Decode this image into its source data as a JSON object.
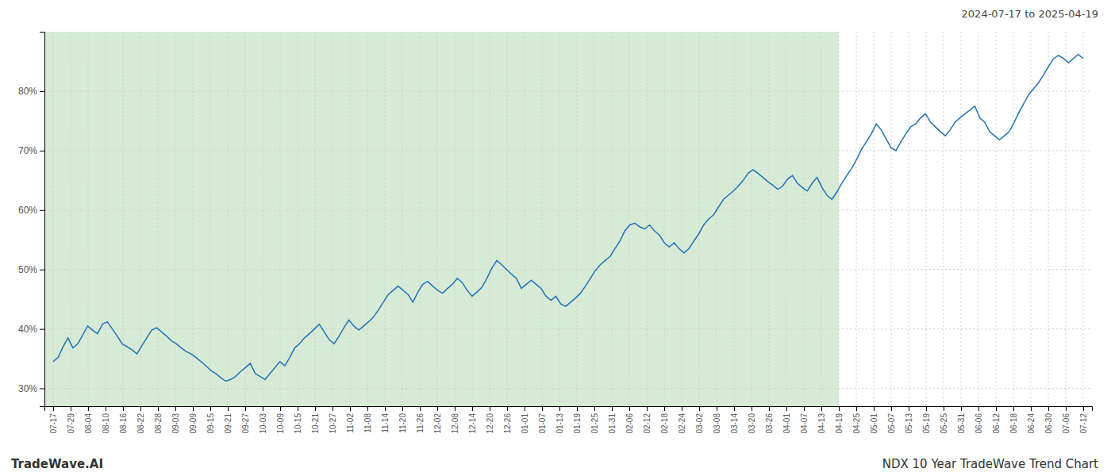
{
  "chart_data": {
    "type": "line",
    "title": "NDX 10 Year TradeWave Trend Chart",
    "subtitle": "2024-07-17 to 2025-04-19",
    "annotations": [
      {
        "text": "TradeWave.AI"
      }
    ],
    "color": "#2272B5",
    "grid": true,
    "shaded_region": {
      "start": -0.5,
      "end": 45,
      "color": "#d6ead6"
    },
    "xlim": [
      -0.5,
      59.5
    ],
    "xticks": [
      {
        "value": 0,
        "label": "07-17"
      },
      {
        "value": 1,
        "label": "07-29"
      },
      {
        "value": 2,
        "label": "08-04"
      },
      {
        "value": 3,
        "label": "08-10"
      },
      {
        "value": 4,
        "label": "08-16"
      },
      {
        "value": 5,
        "label": "08-22"
      },
      {
        "value": 6,
        "label": "08-28"
      },
      {
        "value": 7,
        "label": "09-03"
      },
      {
        "value": 8,
        "label": "09-09"
      },
      {
        "value": 9,
        "label": "09-15"
      },
      {
        "value": 10,
        "label": "09-21"
      },
      {
        "value": 11,
        "label": "09-27"
      },
      {
        "value": 12,
        "label": "10-03"
      },
      {
        "value": 13,
        "label": "10-09"
      },
      {
        "value": 14,
        "label": "10-15"
      },
      {
        "value": 15,
        "label": "10-21"
      },
      {
        "value": 16,
        "label": "10-27"
      },
      {
        "value": 17,
        "label": "11-02"
      },
      {
        "value": 18,
        "label": "11-08"
      },
      {
        "value": 19,
        "label": "11-14"
      },
      {
        "value": 20,
        "label": "11-20"
      },
      {
        "value": 21,
        "label": "11-26"
      },
      {
        "value": 22,
        "label": "12-02"
      },
      {
        "value": 23,
        "label": "12-08"
      },
      {
        "value": 24,
        "label": "12-14"
      },
      {
        "value": 25,
        "label": "12-20"
      },
      {
        "value": 26,
        "label": "12-26"
      },
      {
        "value": 27,
        "label": "01-01"
      },
      {
        "value": 28,
        "label": "01-07"
      },
      {
        "value": 29,
        "label": "01-13"
      },
      {
        "value": 30,
        "label": "01-19"
      },
      {
        "value": 31,
        "label": "01-25"
      },
      {
        "value": 32,
        "label": "01-31"
      },
      {
        "value": 33,
        "label": "02-06"
      },
      {
        "value": 34,
        "label": "02-12"
      },
      {
        "value": 35,
        "label": "02-18"
      },
      {
        "value": 36,
        "label": "02-24"
      },
      {
        "value": 37,
        "label": "03-02"
      },
      {
        "value": 38,
        "label": "03-08"
      },
      {
        "value": 39,
        "label": "03-14"
      },
      {
        "value": 40,
        "label": "03-20"
      },
      {
        "value": 41,
        "label": "03-26"
      },
      {
        "value": 42,
        "label": "04-01"
      },
      {
        "value": 43,
        "label": "04-07"
      },
      {
        "value": 44,
        "label": "04-13"
      },
      {
        "value": 45,
        "label": "04-19"
      },
      {
        "value": 46,
        "label": "04-25"
      },
      {
        "value": 47,
        "label": "05-01"
      },
      {
        "value": 48,
        "label": "05-07"
      },
      {
        "value": 49,
        "label": "05-13"
      },
      {
        "value": 50,
        "label": "05-19"
      },
      {
        "value": 51,
        "label": "05-25"
      },
      {
        "value": 52,
        "label": "05-31"
      },
      {
        "value": 53,
        "label": "06-06"
      },
      {
        "value": 54,
        "label": "06-12"
      },
      {
        "value": 55,
        "label": "06-18"
      },
      {
        "value": 56,
        "label": "06-24"
      },
      {
        "value": 57,
        "label": "06-30"
      },
      {
        "value": 58,
        "label": "07-06"
      },
      {
        "value": 59,
        "label": "07-12"
      }
    ],
    "ylim": [
      27,
      90
    ],
    "yticks": [
      {
        "value": 30,
        "label": "30%"
      },
      {
        "value": 40,
        "label": "40%"
      },
      {
        "value": 50,
        "label": "50%"
      },
      {
        "value": 60,
        "label": "60%"
      },
      {
        "value": 70,
        "label": "70%"
      },
      {
        "value": 80,
        "label": "80%"
      }
    ],
    "x": [
      0,
      0.2823,
      0.5646,
      0.8469,
      1.1292,
      1.4115,
      1.6938,
      1.9761,
      2.2584,
      2.5407,
      2.823,
      3.1053,
      3.3876,
      3.6699,
      3.9522,
      4.2344,
      4.5167,
      4.799,
      5.0813,
      5.3636,
      5.6459,
      5.9282,
      6.2105,
      6.4928,
      6.7751,
      7.0574,
      7.3397,
      7.622,
      7.9043,
      8.1866,
      8.4689,
      8.7512,
      9.0335,
      9.3158,
      9.5981,
      9.8804,
      10.1627,
      10.445,
      10.7273,
      11.0096,
      11.2919,
      11.5742,
      11.8565,
      12.1388,
      12.4211,
      12.7033,
      12.9856,
      13.2679,
      13.5502,
      13.8325,
      14.1148,
      14.3971,
      14.6794,
      14.9617,
      15.244,
      15.5263,
      15.8086,
      16.0909,
      16.3732,
      16.6555,
      16.9378,
      17.2201,
      17.5024,
      17.7847,
      18.067,
      18.3493,
      18.6316,
      18.9139,
      19.1962,
      19.4785,
      19.7608,
      20.0431,
      20.3254,
      20.6077,
      20.89,
      21.1722,
      21.4545,
      21.7368,
      22.0191,
      22.3014,
      22.5837,
      22.866,
      23.1483,
      23.4306,
      23.7129,
      23.9952,
      24.2775,
      24.5598,
      24.8421,
      25.1244,
      25.4067,
      25.689,
      25.9713,
      26.2536,
      26.5359,
      26.8182,
      27.1005,
      27.3828,
      27.6651,
      27.9474,
      28.2297,
      28.512,
      28.7943,
      29.0766,
      29.3589,
      29.6411,
      29.9234,
      30.2057,
      30.488,
      30.7703,
      31.0526,
      31.3349,
      31.6172,
      31.8995,
      32.1818,
      32.4641,
      32.7464,
      33.0287,
      33.311,
      33.5933,
      33.8756,
      34.1579,
      34.4402,
      34.7225,
      35.0048,
      35.2871,
      35.5694,
      35.8517,
      36.134,
      36.4163,
      36.6986,
      36.9809,
      37.2632,
      37.5455,
      37.8278,
      38.11,
      38.3923,
      38.6746,
      38.9569,
      39.2392,
      39.5215,
      39.8038,
      40.0861,
      40.3684,
      40.6507,
      40.933,
      41.2153,
      41.4976,
      41.7799,
      42.0622,
      42.3445,
      42.6268,
      42.9091,
      43.1914,
      43.4737,
      43.756,
      44.0383,
      44.3206,
      44.6029,
      44.8852,
      45.1675,
      45.4498,
      45.7321,
      46.0144,
      46.2967,
      46.5789,
      46.8612,
      47.1435,
      47.4258,
      47.7081,
      47.9904,
      48.2727,
      48.555,
      48.8373,
      49.1196,
      49.4019,
      49.6842,
      49.9665,
      50.2488,
      50.5311,
      50.8134,
      51.0957,
      51.378,
      51.6603,
      51.9426,
      52.2249,
      52.5072,
      52.7895,
      53.0718,
      53.3541,
      53.6364,
      53.9187,
      54.201,
      54.4833,
      54.7656,
      55.0478,
      55.3301,
      55.6124,
      55.8947,
      56.177,
      56.4593,
      56.7416,
      57.0239,
      57.3062,
      57.5885,
      57.8708,
      58.1531,
      58.4354,
      58.7177,
      59
    ],
    "values": [
      34.5,
      35.2,
      37.0,
      38.5,
      36.8,
      37.5,
      39.0,
      40.5,
      39.8,
      39.2,
      40.8,
      41.2,
      40.0,
      38.8,
      37.5,
      37.0,
      36.5,
      35.8,
      37.2,
      38.5,
      39.8,
      40.2,
      39.5,
      38.8,
      38.0,
      37.5,
      36.8,
      36.2,
      35.8,
      35.2,
      34.5,
      33.8,
      33.0,
      32.5,
      31.8,
      31.2,
      31.5,
      32.0,
      32.8,
      33.5,
      34.2,
      32.5,
      32.0,
      31.5,
      32.5,
      33.5,
      34.5,
      33.8,
      35.2,
      36.8,
      37.5,
      38.5,
      39.2,
      40.0,
      40.8,
      39.5,
      38.2,
      37.5,
      38.8,
      40.2,
      41.5,
      40.5,
      39.8,
      40.5,
      41.2,
      42.0,
      43.2,
      44.5,
      45.8,
      46.5,
      47.2,
      46.5,
      45.8,
      44.5,
      46.2,
      47.5,
      48.0,
      47.2,
      46.5,
      46.0,
      46.8,
      47.5,
      48.5,
      47.8,
      46.5,
      45.5,
      46.2,
      47.0,
      48.5,
      50.2,
      51.5,
      50.8,
      50.0,
      49.2,
      48.5,
      46.8,
      47.5,
      48.2,
      47.5,
      46.8,
      45.5,
      44.8,
      45.5,
      44.2,
      43.8,
      44.5,
      45.2,
      46.0,
      47.2,
      48.5,
      49.8,
      50.8,
      51.5,
      52.2,
      53.5,
      54.8,
      56.5,
      57.5,
      57.8,
      57.2,
      56.8,
      57.5,
      56.5,
      55.8,
      54.5,
      53.8,
      54.5,
      53.5,
      52.8,
      53.5,
      54.8,
      56.0,
      57.5,
      58.5,
      59.2,
      60.5,
      61.8,
      62.5,
      63.2,
      64.0,
      65.0,
      66.2,
      66.8,
      66.2,
      65.5,
      64.8,
      64.2,
      63.5,
      64.0,
      65.2,
      65.8,
      64.5,
      63.8,
      63.2,
      64.5,
      65.5,
      63.8,
      62.5,
      61.8,
      63.0,
      64.5,
      65.8,
      67.0,
      68.5,
      70.2,
      71.5,
      72.8,
      74.5,
      73.5,
      72.0,
      70.5,
      70.0,
      71.5,
      72.8,
      74.0,
      74.5,
      75.5,
      76.2,
      74.8,
      74.0,
      73.2,
      72.5,
      73.5,
      74.8,
      75.5,
      76.2,
      76.8,
      77.5,
      75.5,
      74.8,
      73.2,
      72.5,
      71.8,
      72.5,
      73.2,
      74.8,
      76.5,
      78.0,
      79.5,
      80.5,
      81.5,
      82.8,
      84.2,
      85.5,
      86.0,
      85.5,
      84.8,
      85.5,
      86.2,
      85.5
    ]
  }
}
